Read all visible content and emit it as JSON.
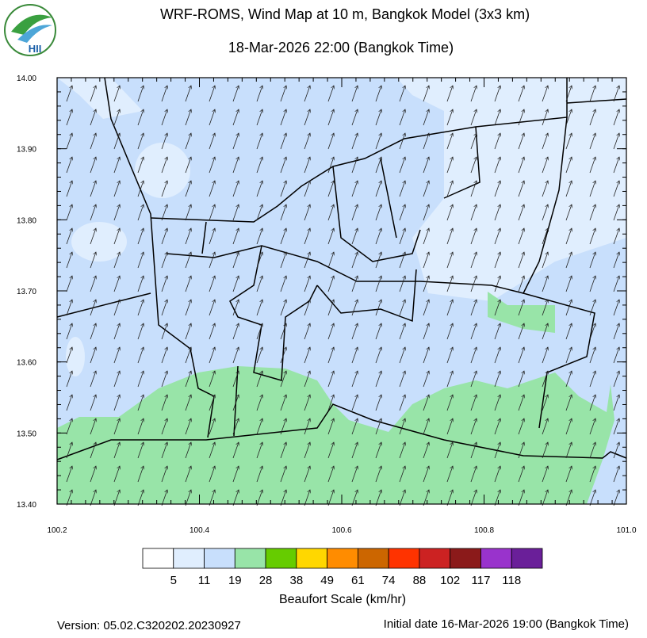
{
  "header": {
    "title": "WRF-ROMS, Wind Map at 10 m, Bangkok Model (3x3 km)",
    "subtitle": "18-Mar-2026 22:00 (Bangkok Time)",
    "logo_text": "HII"
  },
  "map": {
    "xlim": [
      100.2,
      101.0
    ],
    "ylim": [
      13.4,
      14.0
    ],
    "xticks": [
      100.2,
      100.4,
      100.6,
      100.8,
      {
        "value": 101,
        "label": "101.0"
      }
    ],
    "yticks": [
      {
        "value": 14,
        "label": "14.00"
      },
      {
        "value": 13.9,
        "label": "13.90"
      },
      {
        "value": 13.8,
        "label": "13.80"
      },
      {
        "value": 13.7,
        "label": "13.70"
      },
      {
        "value": 13.6,
        "label": "13.60"
      },
      {
        "value": 13.5,
        "label": "13.50"
      },
      {
        "value": 13.4,
        "label": "13.40"
      }
    ]
  },
  "colorbar": {
    "colors": [
      "#ffffff",
      "#e0eefe",
      "#c8dffc",
      "#98e4a8",
      "#66cc00",
      "#ffd700",
      "#ff8c00",
      "#cc6600",
      "#ff3300",
      "#cc2222",
      "#8b1a1a",
      "#9933cc",
      "#6a1f99"
    ],
    "labels": [
      "5",
      "11",
      "19",
      "28",
      "38",
      "49",
      "61",
      "74",
      "88",
      "102",
      "117",
      "118"
    ],
    "title": "Beaufort Scale (km/hr)"
  },
  "footer": {
    "version": "Version: 05.02.C320202.20230927",
    "initial_date": "Initial date 16-Mar-2026 19:00 (Bangkok Time)"
  }
}
